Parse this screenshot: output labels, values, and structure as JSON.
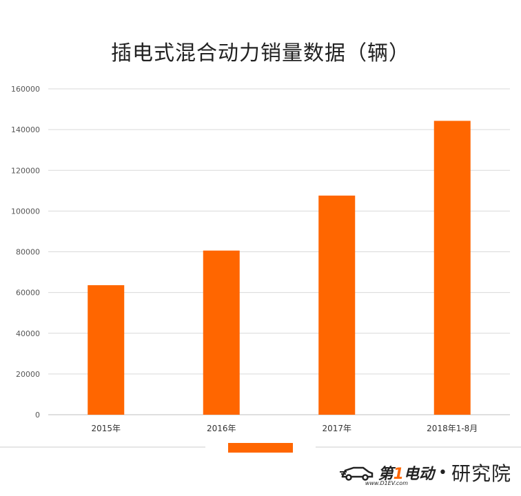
{
  "chart_data": {
    "type": "bar",
    "title": "插电式混合动力销量数据（辆）",
    "categories": [
      "2015年",
      "2016年",
      "2017年",
      "2018年1-8月"
    ],
    "values": [
      63600,
      80600,
      107600,
      144300
    ],
    "ylim": [
      0,
      160000
    ],
    "yticks": [
      0,
      20000,
      40000,
      60000,
      80000,
      100000,
      120000,
      140000,
      160000
    ],
    "grid": true,
    "legend": "bottom-center",
    "colors": {
      "bar": "#ff6600",
      "grid": "#d9d9d9",
      "axis": "#bfbfbf"
    }
  },
  "watermark": {
    "brand_1": "第",
    "brand_2": "1",
    "brand_3": "电动",
    "url": "www.D1EV.com",
    "dot": "•",
    "institute": "研究院"
  }
}
